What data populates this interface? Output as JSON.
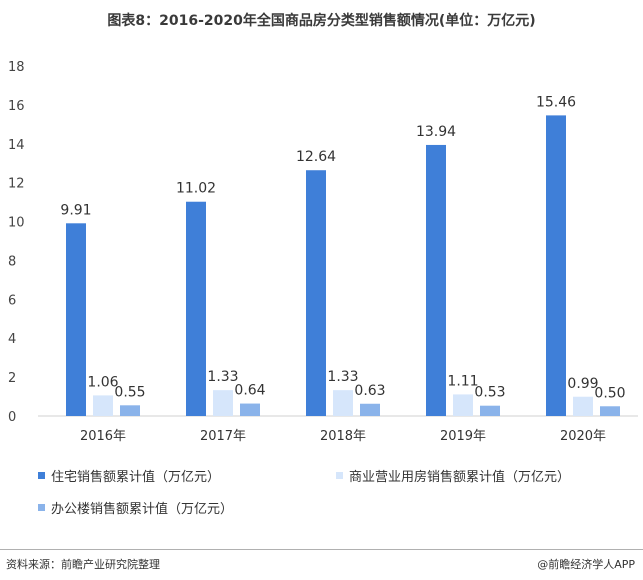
{
  "title": "图表8：2016-2020年全国商品房分类型销售额情况(单位：万亿元)",
  "source": "资料来源：前瞻产业研究院整理",
  "credit": "@前瞻经济学人APP",
  "colors": {
    "residential": "#3f7fd8",
    "commercial": "#d6e6fb",
    "office": "#8ab3ea"
  },
  "chart_data": {
    "type": "bar",
    "categories": [
      "2016年",
      "2017年",
      "2018年",
      "2019年",
      "2020年"
    ],
    "ylim": [
      0,
      18
    ],
    "yticks": [
      "0",
      "2",
      "4",
      "6",
      "8",
      "10",
      "12",
      "14",
      "16",
      "18"
    ],
    "series": [
      {
        "name": "住宅销售额累计值（万亿元）",
        "values": [
          9.91,
          11.02,
          12.64,
          13.94,
          15.46
        ],
        "labels": [
          "9.91",
          "11.02",
          "12.64",
          "13.94",
          "15.46"
        ]
      },
      {
        "name": "商业营业用房销售额累计值（万亿元）",
        "values": [
          1.06,
          1.33,
          1.33,
          1.11,
          0.99
        ],
        "labels": [
          "1.06",
          "1.33",
          "1.33",
          "1.11",
          "0.99"
        ]
      },
      {
        "name": "办公楼销售额累计值（万亿元）",
        "values": [
          0.55,
          0.64,
          0.63,
          0.53,
          0.5
        ],
        "labels": [
          "0.55",
          "0.64",
          "0.63",
          "0.53",
          "0.50"
        ]
      }
    ],
    "legend_position": "bottom"
  }
}
